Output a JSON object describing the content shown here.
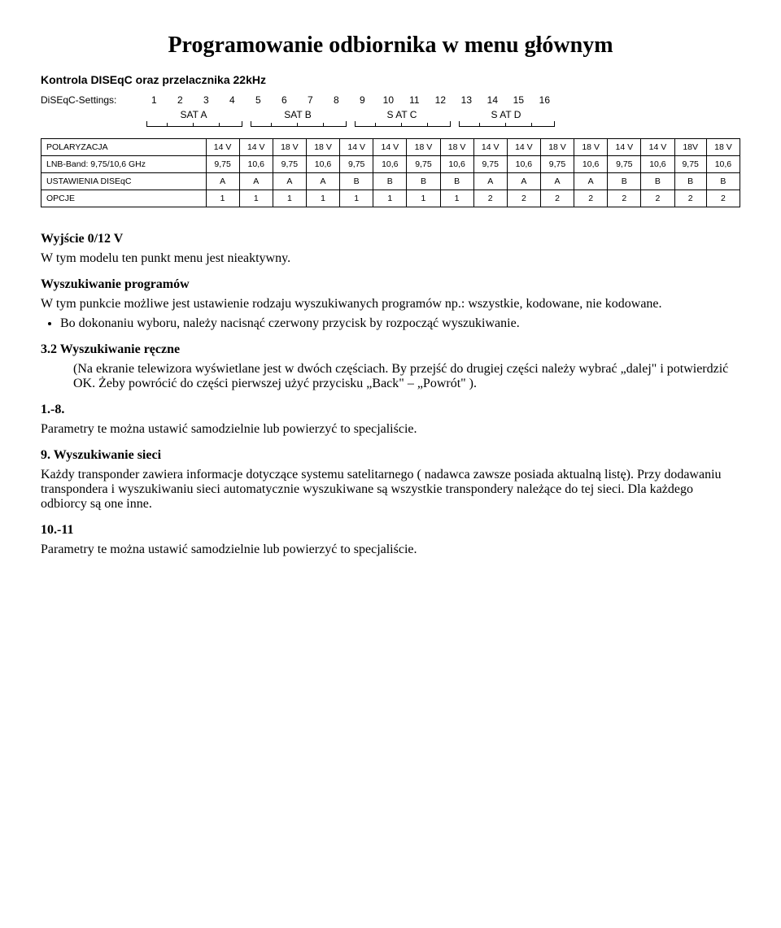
{
  "title": "Programowanie odbiornika w menu głównym",
  "subtitle": "Kontrola DISEqC oraz przelacznika 22kHz",
  "diseqc": {
    "label": "DiSEqC-Settings:",
    "nums": [
      "1",
      "2",
      "3",
      "4",
      "5",
      "6",
      "7",
      "8",
      "9",
      "10",
      "11",
      "12",
      "13",
      "14",
      "15",
      "16"
    ],
    "sats": [
      "SAT A",
      "SAT B",
      "S AT C",
      "S AT D"
    ]
  },
  "table": {
    "rows": [
      {
        "head": "POLARYZACJA",
        "cells": [
          "14 V",
          "14 V",
          "18 V",
          "18 V",
          "14 V",
          "14 V",
          "18 V",
          "18 V",
          "14 V",
          "14 V",
          "18 V",
          "18 V",
          "14 V",
          "14 V",
          "18V",
          "18 V"
        ]
      },
      {
        "head": "LNB-Band: 9,75/10,6 GHz",
        "cells": [
          "9,75",
          "10,6",
          "9,75",
          "10,6",
          "9,75",
          "10,6",
          "9,75",
          "10,6",
          "9,75",
          "10,6",
          "9,75",
          "10,6",
          "9,75",
          "10,6",
          "9,75",
          "10,6"
        ]
      },
      {
        "head": "USTAWIENIA DISEqC",
        "cells": [
          "A",
          "A",
          "A",
          "A",
          "B",
          "B",
          "B",
          "B",
          "A",
          "A",
          "A",
          "A",
          "B",
          "B",
          "B",
          "B"
        ]
      },
      {
        "head": "OPCJE",
        "cells": [
          "1",
          "1",
          "1",
          "1",
          "1",
          "1",
          "1",
          "1",
          "2",
          "2",
          "2",
          "2",
          "2",
          "2",
          "2",
          "2"
        ]
      }
    ]
  },
  "body": {
    "s1_title": "Wyjście 0/12 V",
    "s1_text": "W tym modelu ten punkt menu jest nieaktywny.",
    "s2_title": "Wyszukiwanie programów",
    "s2_text": "W tym punkcie możliwe jest ustawienie rodzaju wyszukiwanych programów np.: wszystkie, kodowane, nie kodowane.",
    "s2_bullet": "Bo dokonaniu wyboru, należy nacisnąć czerwony przycisk by rozpocząć wyszukiwanie.",
    "s3_title": "3.2 Wyszukiwanie ręczne",
    "s3_text": "(Na ekranie telewizora wyświetlane jest w dwóch częściach. By przejść do drugiej części należy wybrać „dalej\" i potwierdzić OK. Żeby powrócić do części pierwszej użyć przycisku „Back\" – „Powrót\" ).",
    "s4_title": "1.-8.",
    "s4_text": "Parametry te można ustawić samodzielnie lub powierzyć to specjaliście.",
    "s5_title": "9. Wyszukiwanie sieci",
    "s5_text": "Każdy transponder zawiera informacje dotyczące systemu satelitarnego ( nadawca zawsze posiada aktualną listę). Przy dodawaniu transpondera i wyszukiwaniu sieci automatycznie wyszukiwane są wszystkie transpondery należące do tej sieci. Dla każdego odbiorcy są one inne.",
    "s6_title": "10.-11",
    "s6_text": "Parametry te można ustawić samodzielnie lub powierzyć to specjaliście."
  }
}
